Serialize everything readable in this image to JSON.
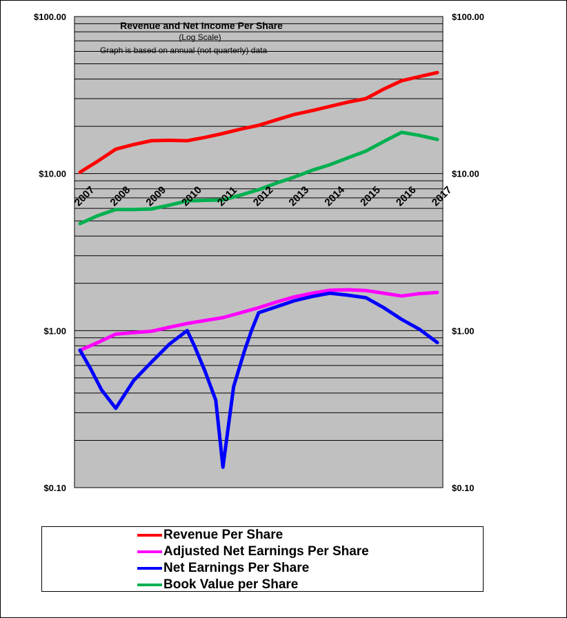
{
  "chart_data": {
    "type": "line",
    "title": "Revenue  and  Net Income  Per Share",
    "subtitle": "(Log  Scale)",
    "note": "Graph is based on annual (not quarterly) data",
    "yscale": "log",
    "ylim": [
      0.1,
      100
    ],
    "yticks": [
      0.1,
      1,
      10,
      100
    ],
    "ytick_labels": [
      "$0.10",
      "$1.00",
      "$10.00",
      "$100.00"
    ],
    "xlim": [
      2007,
      2017
    ],
    "xticks": [
      "2007",
      "2008",
      "2009",
      "2010",
      "2011",
      "2012",
      "2013",
      "2014",
      "2015",
      "2016",
      "2017"
    ],
    "grid": true,
    "plot_background": "#C0C0C0",
    "legend_position": "bottom",
    "series": [
      {
        "name": "Revenue Per Share",
        "color": "#FF0000",
        "points": [
          [
            2007,
            10.2
          ],
          [
            2007.5,
            12.0
          ],
          [
            2008,
            14.3
          ],
          [
            2008.5,
            15.3
          ],
          [
            2009,
            16.2
          ],
          [
            2009.5,
            16.3
          ],
          [
            2010,
            16.2
          ],
          [
            2010.5,
            17.0
          ],
          [
            2011,
            18.0
          ],
          [
            2011.5,
            19.2
          ],
          [
            2012,
            20.3
          ],
          [
            2012.5,
            22.0
          ],
          [
            2013,
            23.8
          ],
          [
            2013.5,
            25.2
          ],
          [
            2014,
            26.8
          ],
          [
            2014.5,
            28.5
          ],
          [
            2015,
            30.0
          ],
          [
            2015.5,
            34.5
          ],
          [
            2016,
            39.0
          ],
          [
            2016.5,
            41.5
          ],
          [
            2017,
            44.0
          ]
        ]
      },
      {
        "name": "Adjusted Net Earnings Per Share",
        "color": "#FF00FF",
        "points": [
          [
            2007,
            0.75
          ],
          [
            2007.5,
            0.84
          ],
          [
            2008,
            0.95
          ],
          [
            2008.5,
            0.97
          ],
          [
            2009,
            0.99
          ],
          [
            2009.5,
            1.05
          ],
          [
            2010,
            1.11
          ],
          [
            2010.5,
            1.16
          ],
          [
            2011,
            1.21
          ],
          [
            2011.5,
            1.3
          ],
          [
            2012,
            1.4
          ],
          [
            2012.5,
            1.52
          ],
          [
            2013,
            1.64
          ],
          [
            2013.5,
            1.73
          ],
          [
            2014,
            1.81
          ],
          [
            2014.5,
            1.82
          ],
          [
            2015,
            1.8
          ],
          [
            2015.5,
            1.73
          ],
          [
            2016,
            1.66
          ],
          [
            2016.5,
            1.72
          ],
          [
            2017,
            1.75
          ]
        ]
      },
      {
        "name": "Net Earnings Per Share",
        "color": "#0000FF",
        "points": [
          [
            2007,
            0.75
          ],
          [
            2007.3,
            0.57
          ],
          [
            2007.6,
            0.42
          ],
          [
            2008,
            0.32
          ],
          [
            2008.5,
            0.48
          ],
          [
            2009,
            0.63
          ],
          [
            2009.5,
            0.82
          ],
          [
            2010,
            1.0
          ],
          [
            2010.2,
            0.8
          ],
          [
            2010.5,
            0.55
          ],
          [
            2010.8,
            0.36
          ],
          [
            2011,
            0.135
          ],
          [
            2011.3,
            0.44
          ],
          [
            2011.6,
            0.74
          ],
          [
            2011.8,
            1.0
          ],
          [
            2012,
            1.3
          ],
          [
            2012.5,
            1.42
          ],
          [
            2013,
            1.55
          ],
          [
            2013.5,
            1.65
          ],
          [
            2014,
            1.73
          ],
          [
            2014.5,
            1.68
          ],
          [
            2015,
            1.62
          ],
          [
            2015.5,
            1.4
          ],
          [
            2016,
            1.18
          ],
          [
            2016.5,
            1.02
          ],
          [
            2017,
            0.84
          ]
        ]
      },
      {
        "name": "Book Value per Share",
        "color": "#00B050",
        "points": [
          [
            2007,
            4.8
          ],
          [
            2007.5,
            5.4
          ],
          [
            2008,
            5.9
          ],
          [
            2008.5,
            5.9
          ],
          [
            2009,
            5.95
          ],
          [
            2009.5,
            6.3
          ],
          [
            2010,
            6.7
          ],
          [
            2010.5,
            6.75
          ],
          [
            2011,
            6.8
          ],
          [
            2011.5,
            7.3
          ],
          [
            2012,
            7.9
          ],
          [
            2012.5,
            8.7
          ],
          [
            2013,
            9.5
          ],
          [
            2013.5,
            10.5
          ],
          [
            2014,
            11.4
          ],
          [
            2014.5,
            12.6
          ],
          [
            2015,
            13.9
          ],
          [
            2015.5,
            16.0
          ],
          [
            2016,
            18.3
          ],
          [
            2016.5,
            17.5
          ],
          [
            2017,
            16.5
          ]
        ]
      }
    ]
  }
}
